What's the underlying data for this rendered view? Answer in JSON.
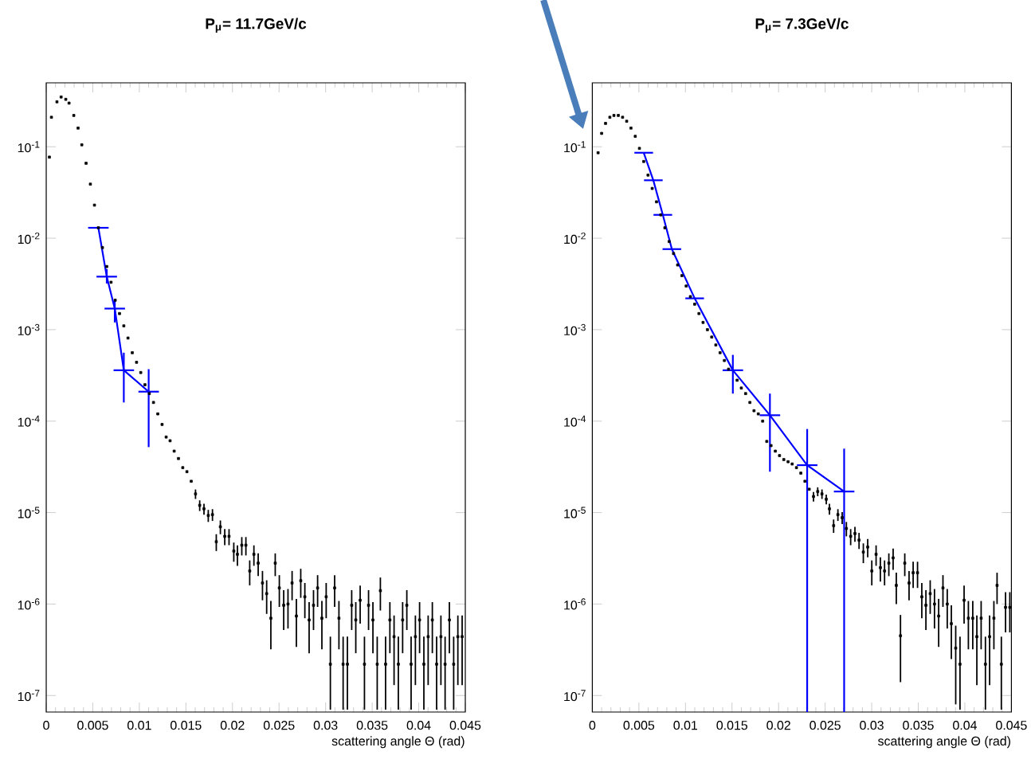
{
  "chart_data": [
    {
      "type": "scatter",
      "title": "P$_{μ}$= 11.7GeV/c",
      "xlabel": "scattering angle   Θ (rad)",
      "log": "y",
      "xlim": [
        0,
        0.045
      ],
      "ylim": [
        6.6e-08,
        0.5
      ],
      "xticks": [
        0,
        0.005,
        0.01,
        0.015,
        0.02,
        0.025,
        0.03,
        0.035,
        0.04,
        0.045
      ],
      "yticks": [
        {
          "value": 1e-07,
          "label": "10$^{-7}$"
        },
        {
          "value": 1e-06,
          "label": "10$^{-6}$"
        },
        {
          "value": 1e-05,
          "label": "10$^{-5}$"
        },
        {
          "value": 0.0001,
          "label": "10$^{-4}$"
        },
        {
          "value": 0.001,
          "label": "10$^{-3}$"
        },
        {
          "value": 0.01,
          "label": "10$^{-2}$"
        },
        {
          "value": 0.1,
          "label": "10$^{-1}$"
        }
      ],
      "series": [
        {
          "marker": "square",
          "color": "#000000",
          "x": [
            0.00034,
            0.00056,
            0.00115,
            0.0016,
            0.0021,
            0.00245,
            0.00296,
            0.00342,
            0.00382,
            0.00428,
            0.00474,
            0.00518,
            0.0056,
            0.00604,
            0.0065,
            0.00696,
            0.00741,
            0.00787,
            0.00833,
            0.00878,
            0.00924,
            0.0097,
            0.01015,
            0.0106,
            0.01107,
            0.01152,
            0.01198,
            0.01244,
            0.01288,
            0.0133,
            0.01374,
            0.0142,
            0.01466,
            0.01511,
            0.01557,
            0.01603,
            0.01648,
            0.01694,
            0.0174,
            0.01785,
            0.01826,
            0.0187,
            0.01917,
            0.01963,
            0.02014,
            0.02053,
            0.021,
            0.02144,
            0.02185,
            0.0223,
            0.02276,
            0.02322,
            0.02367,
            0.02412,
            0.02459,
            0.02503,
            0.0255,
            0.02596,
            0.0264,
            0.02686,
            0.02733,
            0.02777,
            0.02823,
            0.0287,
            0.02914,
            0.0296,
            0.03006,
            0.03051,
            0.03097,
            0.03143,
            0.03188,
            0.03234,
            0.0328,
            0.03324,
            0.03371,
            0.03417,
            0.03461,
            0.03508,
            0.03554,
            0.03588,
            0.03644,
            0.0369,
            0.03735,
            0.03781,
            0.03827,
            0.03872,
            0.03918,
            0.03964,
            0.04009,
            0.04055,
            0.04101,
            0.04146,
            0.04192,
            0.04238,
            0.04283,
            0.04329,
            0.04375,
            0.0442,
            0.04466
          ],
          "values": [
            0.077,
            0.21,
            0.31,
            0.35,
            0.33,
            0.3,
            0.22,
            0.16,
            0.105,
            0.066,
            0.039,
            0.023,
            0.013,
            0.0079,
            0.0049,
            0.0033,
            0.0021,
            0.0015,
            0.0011,
            0.00081,
            0.00056,
            0.00044,
            0.00034,
            0.00025,
            0.0002,
            0.00016,
            0.00012,
            9.2e-05,
            6.7e-05,
            6.1e-05,
            4.7e-05,
            3.9e-05,
            3.1e-05,
            2.8e-05,
            2.2e-05,
            1.6e-05,
            1.2e-05,
            1.1e-05,
            9.3e-06,
            9.5e-06,
            4.8e-06,
            7e-06,
            5.5e-06,
            5.5e-06,
            3.8e-06,
            3.5e-06,
            4.4e-06,
            4.4e-06,
            2.3e-06,
            3.5e-06,
            2.8e-06,
            1.7e-06,
            1.3e-06,
            7e-07,
            2.8e-06,
            1.5e-06,
            9.7e-07,
            1e-06,
            1.7e-06,
            7.4e-07,
            1.8e-06,
            1.2e-06,
            6.7e-07,
            9.7e-07,
            1.5e-06,
            7e-07,
            1.2e-06,
            2.2e-07,
            1.5e-06,
            7e-07,
            2.2e-07,
            2.2e-07,
            9.7e-07,
            6.7e-07,
            1.1e-06,
            2.2e-07,
            9.7e-07,
            6.7e-07,
            2.2e-07,
            1.4e-06,
            2.2e-07,
            6.7e-07,
            4.4e-07,
            2.2e-07,
            6.7e-07,
            9.7e-07,
            2.2e-07,
            4.4e-07,
            6.7e-07,
            2.2e-07,
            4.4e-07,
            6.7e-07,
            2.2e-07,
            4.4e-07,
            2.2e-07,
            6.7e-07,
            2.2e-07,
            4.4e-07,
            4.4e-07
          ],
          "errors": [
            null,
            null,
            null,
            null,
            null,
            null,
            null,
            null,
            null,
            null,
            null,
            null,
            null,
            null,
            null,
            null,
            null,
            null,
            null,
            null,
            null,
            null,
            null,
            null,
            null,
            null,
            null,
            null,
            null,
            null,
            null,
            null,
            null,
            null,
            null,
            1.9e-06,
            1.6e-06,
            1.5e-06,
            1.4e-06,
            1.4e-06,
            1e-06,
            1.2e-06,
            1.1e-06,
            1.1e-06,
            9e-07,
            8.8e-07,
            1e-06,
            1e-06,
            7e-07,
            8.8e-07,
            7.8e-07,
            6e-07,
            5.2e-07,
            3.8e-07,
            7.8e-07,
            5.7e-07,
            4.5e-07,
            4.6e-07,
            6e-07,
            4e-07,
            6.3e-07,
            5e-07,
            3.8e-07,
            4.5e-07,
            5.7e-07,
            3.8e-07,
            5e-07,
            [
              7e-08,
              4.4e-07
            ],
            5.7e-07,
            3.8e-07,
            [
              7e-08,
              4.4e-07
            ],
            [
              7e-08,
              4.4e-07
            ],
            4.5e-07,
            3.8e-07,
            4.9e-07,
            [
              7e-08,
              4.4e-07
            ],
            4.5e-07,
            3.8e-07,
            [
              7e-08,
              4.4e-07
            ],
            5.5e-07,
            [
              7e-08,
              4.4e-07
            ],
            3.8e-07,
            3.1e-07,
            [
              7e-08,
              4.4e-07
            ],
            3.8e-07,
            4.5e-07,
            [
              7e-08,
              4.4e-07
            ],
            3.1e-07,
            3.8e-07,
            [
              7e-08,
              4.4e-07
            ],
            3.1e-07,
            3.8e-07,
            [
              7e-08,
              4.4e-07
            ],
            3.1e-07,
            [
              7e-08,
              4.4e-07
            ],
            3.8e-07,
            [
              7e-08,
              4.4e-07
            ],
            3.1e-07,
            3.1e-07
          ]
        },
        {
          "type": "line",
          "marker": "none",
          "color": "#0000ff",
          "x": [
            0.0056,
            0.0065,
            0.00736,
            0.00833,
            0.011
          ],
          "values": [
            0.013,
            0.0038,
            0.0017,
            0.00036,
            0.00021
          ],
          "errors": [
            null,
            [
              0.0032,
              0.0046
            ],
            [
              0.0012,
              0.0021
            ],
            [
              0.00016,
              0.00056
            ],
            [
              5.2e-05,
              0.00037
            ]
          ],
          "xerrors": [
            0.0011,
            0.0011,
            0.0011,
            0.0011,
            0.0011
          ]
        }
      ]
    },
    {
      "type": "scatter",
      "title": "P$_{μ}$= 7.3GeV/c",
      "xlabel": "scattering angle   Θ (rad)",
      "log": "y",
      "xlim": [
        0,
        0.045
      ],
      "ylim": [
        6.6e-08,
        0.5
      ],
      "xticks": [
        0,
        0.005,
        0.01,
        0.015,
        0.02,
        0.025,
        0.03,
        0.035,
        0.04,
        0.045
      ],
      "yticks": [
        {
          "value": 1e-07,
          "label": "10$^{-7}$"
        },
        {
          "value": 1e-06,
          "label": "10$^{-6}$"
        },
        {
          "value": 1e-05,
          "label": "10$^{-5}$"
        },
        {
          "value": 0.0001,
          "label": "10$^{-4}$"
        },
        {
          "value": 0.001,
          "label": "10$^{-3}$"
        },
        {
          "value": 0.01,
          "label": "10$^{-2}$"
        },
        {
          "value": 0.1,
          "label": "10$^{-1}$"
        }
      ],
      "series": [
        {
          "marker": "square",
          "color": "#000000",
          "x": [
            0.00062,
            0.001,
            0.00142,
            0.00188,
            0.00232,
            0.00279,
            0.00325,
            0.00369,
            0.00415,
            0.00461,
            0.00506,
            0.00552,
            0.00598,
            0.00643,
            0.00689,
            0.00735,
            0.00779,
            0.00825,
            0.00872,
            0.00916,
            0.00962,
            0.01008,
            0.01053,
            0.01099,
            0.01145,
            0.01189,
            0.01236,
            0.01282,
            0.01326,
            0.01372,
            0.01418,
            0.01463,
            0.01555,
            0.016,
            0.01646,
            0.01692,
            0.01736,
            0.01782,
            0.01829,
            0.01873,
            0.01919,
            0.01965,
            0.0201,
            0.02056,
            0.02102,
            0.02146,
            0.02192,
            0.02239,
            0.02283,
            0.02329,
            0.02375,
            0.0242,
            0.02466,
            0.02512,
            0.02546,
            0.02591,
            0.02637,
            0.02683,
            0.02728,
            0.02774,
            0.0282,
            0.02864,
            0.0291,
            0.02957,
            0.03001,
            0.03047,
            0.03093,
            0.03138,
            0.03184,
            0.0323,
            0.03264,
            0.03309,
            0.03355,
            0.03401,
            0.03445,
            0.03492,
            0.03538,
            0.03582,
            0.03628,
            0.03674,
            0.03719,
            0.03765,
            0.03811,
            0.03855,
            0.03902,
            0.03948,
            0.03992,
            0.04038,
            0.04085,
            0.04129,
            0.04175,
            0.04221,
            0.04266,
            0.04312,
            0.04346,
            0.04392,
            0.04437,
            0.04483
          ],
          "values": [
            0.086,
            0.14,
            0.18,
            0.21,
            0.22,
            0.22,
            0.21,
            0.19,
            0.16,
            0.13,
            0.096,
            0.069,
            0.049,
            0.035,
            0.025,
            0.018,
            0.013,
            0.0092,
            0.0068,
            0.0051,
            0.0039,
            0.003,
            0.0023,
            0.0019,
            0.0015,
            0.0012,
            0.001,
            0.00083,
            0.00068,
            0.00056,
            0.00046,
            0.00037,
            0.00028,
            0.00023,
            0.0002,
            0.00016,
            0.00013,
            0.00012,
            0.0001,
            6e-05,
            5.4e-05,
            4.7e-05,
            4.2e-05,
            3.8e-05,
            3.6e-05,
            3.4e-05,
            3.1e-05,
            2.7e-05,
            2.2e-05,
            1.8e-05,
            1.5e-05,
            1.7e-05,
            1.6e-05,
            1.4e-05,
            1.1e-05,
            7.2e-06,
            9.5e-06,
            8.8e-06,
            6.7e-06,
            5.5e-06,
            5.9e-06,
            5e-06,
            3.7e-06,
            4.2e-06,
            2.3e-06,
            3.5e-06,
            2.5e-06,
            2.3e-06,
            2.8e-06,
            3.2e-06,
            1.6e-06,
            4.5e-07,
            2.8e-06,
            1.7e-06,
            2.2e-06,
            2.2e-06,
            1.2e-06,
            9.7e-07,
            1.3e-06,
            1e-06,
            7.4e-07,
            1.5e-06,
            1e-06,
            6.1e-07,
            3.3e-07,
            2.2e-07,
            1.1e-06,
            7e-07,
            7e-07,
            4.4e-07,
            7e-07,
            2.2e-07,
            4.4e-07,
            7e-07,
            1.6e-06,
            2.2e-07,
            9.2e-07,
            9.2e-07
          ],
          "errors": [
            null,
            null,
            null,
            null,
            null,
            null,
            null,
            null,
            null,
            null,
            null,
            null,
            null,
            null,
            null,
            null,
            null,
            null,
            null,
            null,
            null,
            null,
            null,
            null,
            null,
            null,
            null,
            null,
            null,
            null,
            null,
            null,
            null,
            null,
            null,
            null,
            null,
            null,
            null,
            null,
            null,
            null,
            null,
            null,
            null,
            null,
            null,
            null,
            null,
            null,
            1.8e-06,
            1.9e-06,
            1.9e-06,
            1.7e-06,
            1.5e-06,
            1.2e-06,
            1.4e-06,
            1.3e-06,
            1.2e-06,
            1.1e-06,
            1.1e-06,
            1e-06,
            9e-07,
            9.5e-07,
            7e-07,
            8.8e-07,
            7.4e-07,
            7e-07,
            7.8e-07,
            8.4e-07,
            6e-07,
            3.1e-07,
            7.8e-07,
            6e-07,
            7e-07,
            7e-07,
            5e-07,
            4.5e-07,
            5.2e-07,
            4.6e-07,
            4e-07,
            5.7e-07,
            4.6e-07,
            3.6e-07,
            2.5e-07,
            [
              7e-08,
              4.4e-07
            ],
            4.9e-07,
            3.8e-07,
            3.8e-07,
            3.1e-07,
            3.8e-07,
            [
              7e-08,
              4.4e-07
            ],
            3.1e-07,
            3.8e-07,
            6e-07,
            [
              7e-08,
              4.4e-07
            ],
            4.3e-07,
            4.3e-07
          ]
        },
        {
          "type": "line",
          "marker": "none",
          "color": "#0000ff",
          "x": [
            0.00552,
            0.00655,
            0.00757,
            0.00854,
            0.01099,
            0.01509,
            0.01907,
            0.02307,
            0.02704
          ],
          "values": [
            0.086,
            0.043,
            0.018,
            0.0076,
            0.0022,
            0.00036,
            0.000116,
            3.3e-05,
            1.7e-05
          ],
          "errors": [
            null,
            null,
            null,
            null,
            null,
            [
              0.0002,
              0.00053
            ],
            [
              2.8e-05,
              0.0002
            ],
            [
              6.6e-08,
              8.2e-05
            ],
            [
              6.6e-08,
              5e-05
            ]
          ],
          "xerrors": [
            0.001,
            0.001,
            0.001,
            0.001,
            0.001,
            0.0011,
            0.0011,
            0.0011,
            0.0011
          ]
        }
      ]
    }
  ]
}
